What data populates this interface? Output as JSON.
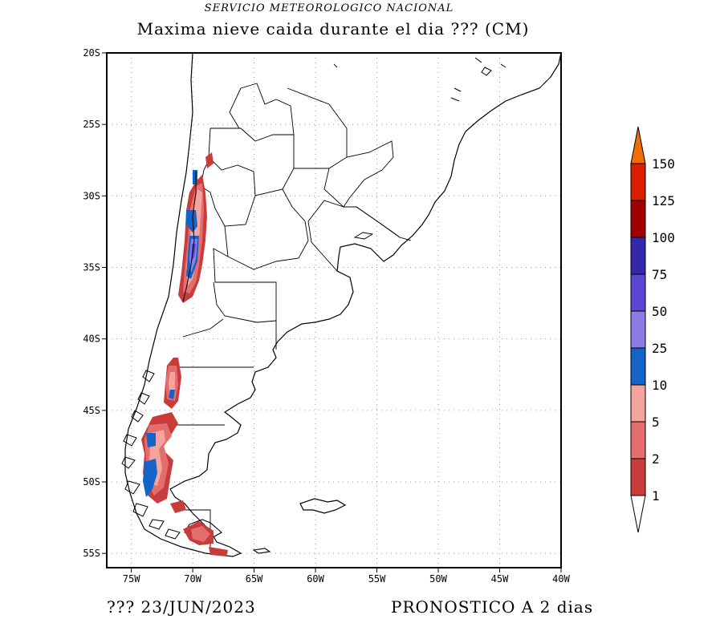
{
  "header": {
    "agency": "SERVICIO METEOROLOGICO NACIONAL",
    "title": "Maxima nieve caida durante el dia ??? (CM)"
  },
  "footer": {
    "date_label": "???  23/JUN/2023",
    "forecast_label": "PRONOSTICO A 2 dias"
  },
  "map": {
    "lat_range": [
      -56,
      -20
    ],
    "lon_range": [
      -77,
      -40
    ],
    "lat_ticks": [
      {
        "value": -20,
        "label": "20S"
      },
      {
        "value": -25,
        "label": "25S"
      },
      {
        "value": -30,
        "label": "30S"
      },
      {
        "value": -35,
        "label": "35S"
      },
      {
        "value": -40,
        "label": "40S"
      },
      {
        "value": -45,
        "label": "45S"
      },
      {
        "value": -50,
        "label": "50S"
      },
      {
        "value": -55,
        "label": "55S"
      }
    ],
    "lon_ticks": [
      {
        "value": -75,
        "label": "75W"
      },
      {
        "value": -70,
        "label": "70W"
      },
      {
        "value": -65,
        "label": "65W"
      },
      {
        "value": -60,
        "label": "60W"
      },
      {
        "value": -55,
        "label": "55W"
      },
      {
        "value": -50,
        "label": "50W"
      },
      {
        "value": -45,
        "label": "45W"
      },
      {
        "value": -40,
        "label": "40W"
      }
    ],
    "grid": "dotted",
    "snow_colors": {
      "1-2": "#c83c3c",
      "2-5": "#e46e6e",
      "5-10": "#f4a49c",
      "10-25": "#1464c8",
      "25-50": "#8c7ce6",
      "50-75": "#5a46d2",
      "75-100": "#3428aa",
      "100-125": "#a00000",
      "125-150": "#dc1e00",
      ">150": "#f06e00"
    }
  },
  "colorbar": {
    "levels": [
      "1",
      "2",
      "5",
      "10",
      "25",
      "50",
      "75",
      "100",
      "125",
      "150"
    ],
    "colors": [
      "#c83c3c",
      "#e46e6e",
      "#f4a49c",
      "#1464c8",
      "#8c7ce6",
      "#5a46d2",
      "#3428aa",
      "#a00000",
      "#dc1e00"
    ],
    "top_arrow_color": "#f06e00",
    "bottom_arrow_color": "#ffffff"
  }
}
